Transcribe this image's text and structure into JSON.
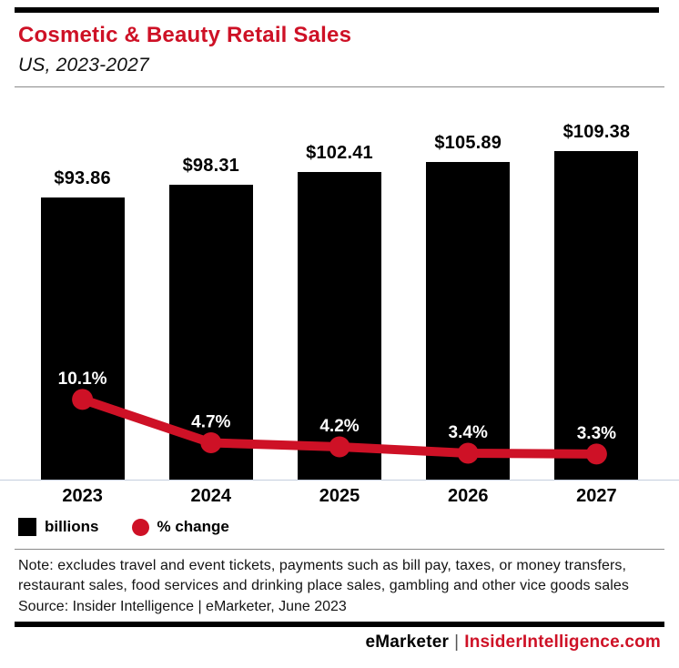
{
  "header": {
    "title": "Cosmetic & Beauty Retail Sales",
    "subtitle": "US, 2023-2027"
  },
  "chart_data": {
    "type": "bar",
    "title": "Cosmetic & Beauty Retail Sales",
    "subtitle": "US, 2023-2027",
    "categories": [
      "2023",
      "2024",
      "2025",
      "2026",
      "2027"
    ],
    "series": [
      {
        "name": "billions",
        "type": "bar",
        "color": "#000000",
        "values": [
          93.86,
          98.31,
          102.41,
          105.89,
          109.38
        ],
        "labels": [
          "$93.86",
          "$98.31",
          "$102.41",
          "$105.89",
          "$109.38"
        ]
      },
      {
        "name": "% change",
        "type": "line",
        "color": "#CE1126",
        "values": [
          10.1,
          4.7,
          4.2,
          3.4,
          3.3
        ],
        "labels": [
          "10.1%",
          "4.7%",
          "4.2%",
          "3.4%",
          "3.3%"
        ]
      }
    ],
    "xlabel": "",
    "ylabel": "",
    "ylim": [
      0,
      122
    ],
    "grid": false,
    "legend_position": "bottom"
  },
  "legend": {
    "items": [
      {
        "label": "billions",
        "swatch": "square",
        "color": "#000000"
      },
      {
        "label": "% change",
        "swatch": "circle",
        "color": "#CE1126"
      }
    ]
  },
  "notes": {
    "note": "Note: excludes travel and event tickets, payments such as bill pay, taxes, or money transfers, restaurant sales, food services and drinking place sales, gambling and other vice goods sales",
    "source": "Source: Insider Intelligence | eMarketer, June 2023"
  },
  "footer": {
    "brand": "eMarketer",
    "divider": "|",
    "site": "InsiderIntelligence.com"
  },
  "colors": {
    "accent_red": "#CE1126",
    "bar_black": "#000000",
    "baseline_line": "#C5CEDE"
  }
}
